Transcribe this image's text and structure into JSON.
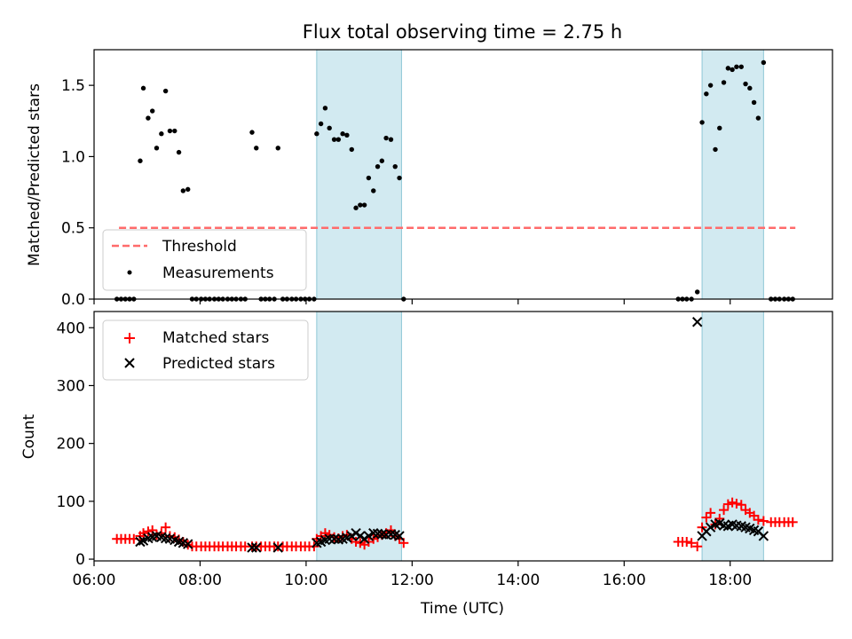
{
  "title": "Flux total observing time = 2.75 h",
  "colors": {
    "band": "#add8e6",
    "threshold": "#ff6b6b",
    "measurements": "#000000",
    "matched": "#ff0000",
    "predicted": "#000000"
  },
  "chart_data": [
    {
      "type": "scatter",
      "ylabel": "Matched/Predicted stars",
      "xlim": [
        6.0,
        19.93
      ],
      "ylim": [
        0,
        1.75
      ],
      "yticks": [
        "0.0",
        "0.5",
        "1.0",
        "1.5"
      ],
      "observing_windows": [
        [
          10.2,
          11.8
        ],
        [
          17.47,
          18.63
        ]
      ],
      "threshold": {
        "name": "Threshold",
        "y": 0.5,
        "x_start": 6.47,
        "x_end": 19.23
      },
      "legend": [
        "Threshold",
        "Measurements"
      ],
      "series": [
        {
          "name": "Measurements",
          "points": [
            [
              6.43,
              0
            ],
            [
              6.51,
              0
            ],
            [
              6.59,
              0
            ],
            [
              6.67,
              0
            ],
            [
              6.75,
              0
            ],
            [
              6.87,
              0.97
            ],
            [
              6.93,
              1.48
            ],
            [
              7.02,
              1.27
            ],
            [
              7.1,
              1.32
            ],
            [
              7.18,
              1.06
            ],
            [
              7.27,
              1.16
            ],
            [
              7.35,
              1.46
            ],
            [
              7.43,
              1.18
            ],
            [
              7.52,
              1.18
            ],
            [
              7.6,
              1.03
            ],
            [
              7.68,
              0.76
            ],
            [
              7.77,
              0.77
            ],
            [
              7.85,
              0
            ],
            [
              7.93,
              0
            ],
            [
              8.02,
              0
            ],
            [
              8.1,
              0
            ],
            [
              8.18,
              0
            ],
            [
              8.27,
              0
            ],
            [
              8.35,
              0
            ],
            [
              8.43,
              0
            ],
            [
              8.52,
              0
            ],
            [
              8.6,
              0
            ],
            [
              8.68,
              0
            ],
            [
              8.77,
              0
            ],
            [
              8.85,
              0
            ],
            [
              8.98,
              1.17
            ],
            [
              9.06,
              1.06
            ],
            [
              9.15,
              0
            ],
            [
              9.23,
              0
            ],
            [
              9.31,
              0
            ],
            [
              9.4,
              0
            ],
            [
              9.47,
              1.06
            ],
            [
              9.56,
              0
            ],
            [
              9.64,
              0
            ],
            [
              9.73,
              0
            ],
            [
              9.81,
              0
            ],
            [
              9.9,
              0
            ],
            [
              9.98,
              0
            ],
            [
              10.06,
              0
            ],
            [
              10.15,
              0
            ],
            [
              10.2,
              1.16
            ],
            [
              10.28,
              1.23
            ],
            [
              10.36,
              1.34
            ],
            [
              10.44,
              1.2
            ],
            [
              10.53,
              1.12
            ],
            [
              10.61,
              1.12
            ],
            [
              10.69,
              1.16
            ],
            [
              10.77,
              1.15
            ],
            [
              10.86,
              1.05
            ],
            [
              10.94,
              0.64
            ],
            [
              11.02,
              0.66
            ],
            [
              11.1,
              0.66
            ],
            [
              11.18,
              0.85
            ],
            [
              11.27,
              0.76
            ],
            [
              11.35,
              0.93
            ],
            [
              11.43,
              0.97
            ],
            [
              11.51,
              1.13
            ],
            [
              11.6,
              1.12
            ],
            [
              11.68,
              0.93
            ],
            [
              11.76,
              0.85
            ],
            [
              11.84,
              0
            ],
            [
              17.02,
              0
            ],
            [
              17.1,
              0
            ],
            [
              17.18,
              0
            ],
            [
              17.27,
              0
            ],
            [
              17.38,
              0.05
            ],
            [
              17.47,
              1.24
            ],
            [
              17.55,
              1.44
            ],
            [
              17.63,
              1.5
            ],
            [
              17.72,
              1.05
            ],
            [
              17.8,
              1.2
            ],
            [
              17.88,
              1.52
            ],
            [
              17.96,
              1.62
            ],
            [
              18.04,
              1.61
            ],
            [
              18.12,
              1.63
            ],
            [
              18.21,
              1.63
            ],
            [
              18.29,
              1.51
            ],
            [
              18.37,
              1.48
            ],
            [
              18.45,
              1.38
            ],
            [
              18.53,
              1.27
            ],
            [
              18.63,
              1.66
            ],
            [
              18.77,
              0
            ],
            [
              18.85,
              0
            ],
            [
              18.93,
              0
            ],
            [
              19.02,
              0
            ],
            [
              19.1,
              0
            ],
            [
              19.18,
              0
            ]
          ]
        }
      ]
    },
    {
      "type": "scatter",
      "xlabel": "Time (UTC)",
      "ylabel": "Count",
      "xlim": [
        6.0,
        19.93
      ],
      "ylim": [
        -3,
        428
      ],
      "yticks": [
        "0",
        "100",
        "200",
        "300",
        "400"
      ],
      "xticks": [
        "06:00",
        "08:00",
        "10:00",
        "12:00",
        "14:00",
        "16:00",
        "18:00"
      ],
      "observing_windows": [
        [
          10.2,
          11.8
        ],
        [
          17.47,
          18.63
        ]
      ],
      "legend": [
        "Matched stars",
        "Predicted stars"
      ],
      "series": [
        {
          "name": "Matched stars",
          "marker": "plus",
          "points": [
            [
              6.43,
              35
            ],
            [
              6.51,
              35
            ],
            [
              6.59,
              35
            ],
            [
              6.67,
              35
            ],
            [
              6.75,
              35
            ],
            [
              6.87,
              40
            ],
            [
              6.93,
              45
            ],
            [
              7.02,
              48
            ],
            [
              7.1,
              50
            ],
            [
              7.18,
              42
            ],
            [
              7.27,
              45
            ],
            [
              7.35,
              55
            ],
            [
              7.43,
              40
            ],
            [
              7.52,
              38
            ],
            [
              7.6,
              34
            ],
            [
              7.68,
              30
            ],
            [
              7.77,
              25
            ],
            [
              7.85,
              22
            ],
            [
              7.93,
              22
            ],
            [
              8.02,
              22
            ],
            [
              8.1,
              22
            ],
            [
              8.18,
              22
            ],
            [
              8.27,
              22
            ],
            [
              8.35,
              22
            ],
            [
              8.43,
              22
            ],
            [
              8.52,
              22
            ],
            [
              8.6,
              22
            ],
            [
              8.68,
              22
            ],
            [
              8.77,
              22
            ],
            [
              8.85,
              22
            ],
            [
              8.98,
              22
            ],
            [
              9.06,
              22
            ],
            [
              9.15,
              22
            ],
            [
              9.23,
              22
            ],
            [
              9.31,
              22
            ],
            [
              9.4,
              22
            ],
            [
              9.47,
              22
            ],
            [
              9.56,
              22
            ],
            [
              9.64,
              22
            ],
            [
              9.73,
              22
            ],
            [
              9.81,
              22
            ],
            [
              9.9,
              22
            ],
            [
              9.98,
              22
            ],
            [
              10.06,
              22
            ],
            [
              10.15,
              22
            ],
            [
              10.2,
              35
            ],
            [
              10.28,
              40
            ],
            [
              10.36,
              45
            ],
            [
              10.44,
              42
            ],
            [
              10.53,
              38
            ],
            [
              10.61,
              36
            ],
            [
              10.69,
              40
            ],
            [
              10.77,
              42
            ],
            [
              10.86,
              35
            ],
            [
              10.94,
              30
            ],
            [
              11.02,
              28
            ],
            [
              11.1,
              25
            ],
            [
              11.18,
              30
            ],
            [
              11.27,
              35
            ],
            [
              11.35,
              38
            ],
            [
              11.43,
              42
            ],
            [
              11.51,
              45
            ],
            [
              11.6,
              50
            ],
            [
              11.68,
              40
            ],
            [
              11.76,
              35
            ],
            [
              11.84,
              28
            ],
            [
              17.02,
              30
            ],
            [
              17.1,
              30
            ],
            [
              17.18,
              30
            ],
            [
              17.27,
              28
            ],
            [
              17.38,
              22
            ],
            [
              17.47,
              55
            ],
            [
              17.55,
              72
            ],
            [
              17.63,
              80
            ],
            [
              17.72,
              60
            ],
            [
              17.8,
              70
            ],
            [
              17.88,
              85
            ],
            [
              17.96,
              95
            ],
            [
              18.04,
              98
            ],
            [
              18.12,
              96
            ],
            [
              18.21,
              94
            ],
            [
              18.29,
              85
            ],
            [
              18.37,
              80
            ],
            [
              18.45,
              75
            ],
            [
              18.53,
              68
            ],
            [
              18.63,
              66
            ],
            [
              18.77,
              64
            ],
            [
              18.85,
              64
            ],
            [
              18.93,
              64
            ],
            [
              19.02,
              64
            ],
            [
              19.1,
              64
            ],
            [
              19.18,
              64
            ]
          ]
        },
        {
          "name": "Predicted stars",
          "marker": "x",
          "points": [
            [
              6.87,
              30
            ],
            [
              6.93,
              32
            ],
            [
              7.02,
              36
            ],
            [
              7.1,
              38
            ],
            [
              7.18,
              40
            ],
            [
              7.27,
              38
            ],
            [
              7.35,
              36
            ],
            [
              7.43,
              35
            ],
            [
              7.52,
              33
            ],
            [
              7.6,
              30
            ],
            [
              7.68,
              28
            ],
            [
              7.77,
              26
            ],
            [
              8.98,
              20
            ],
            [
              9.06,
              20
            ],
            [
              9.47,
              20
            ],
            [
              10.2,
              28
            ],
            [
              10.28,
              30
            ],
            [
              10.36,
              33
            ],
            [
              10.44,
              35
            ],
            [
              10.53,
              35
            ],
            [
              10.61,
              34
            ],
            [
              10.69,
              35
            ],
            [
              10.77,
              37
            ],
            [
              10.86,
              40
            ],
            [
              10.94,
              45
            ],
            [
              11.02,
              40
            ],
            [
              11.1,
              35
            ],
            [
              11.18,
              40
            ],
            [
              11.27,
              45
            ],
            [
              11.35,
              44
            ],
            [
              11.43,
              43
            ],
            [
              11.51,
              42
            ],
            [
              11.6,
              43
            ],
            [
              11.68,
              42
            ],
            [
              11.76,
              40
            ],
            [
              17.38,
              410
            ],
            [
              17.47,
              40
            ],
            [
              17.55,
              48
            ],
            [
              17.63,
              55
            ],
            [
              17.72,
              60
            ],
            [
              17.8,
              62
            ],
            [
              17.88,
              58
            ],
            [
              17.96,
              57
            ],
            [
              18.04,
              60
            ],
            [
              18.12,
              58
            ],
            [
              18.21,
              57
            ],
            [
              18.29,
              55
            ],
            [
              18.37,
              53
            ],
            [
              18.45,
              50
            ],
            [
              18.53,
              48
            ],
            [
              18.63,
              40
            ]
          ]
        }
      ]
    }
  ]
}
